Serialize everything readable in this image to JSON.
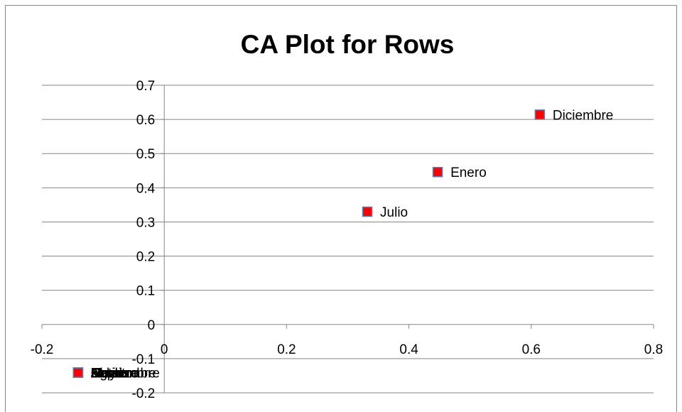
{
  "chart_data": {
    "type": "scatter",
    "title": "CA Plot for Rows",
    "xlabel": "",
    "ylabel": "",
    "xlim": [
      -0.2,
      0.8
    ],
    "ylim": [
      -0.2,
      0.7
    ],
    "x_ticks": [
      -0.2,
      0,
      0.2,
      0.4,
      0.6,
      0.8
    ],
    "y_ticks": [
      -0.2,
      -0.1,
      0,
      0.1,
      0.2,
      0.3,
      0.4,
      0.5,
      0.6,
      0.7
    ],
    "grid": "horizontal",
    "legend": "none",
    "marker_color": "#ff0000",
    "marker_edge_color": "#4f81bd",
    "points": [
      {
        "label": "Diciembre",
        "x": 0.614,
        "y": 0.614
      },
      {
        "label": "Enero",
        "x": 0.447,
        "y": 0.446
      },
      {
        "label": "Julio",
        "x": 0.332,
        "y": 0.33
      },
      {
        "label": "Febrero",
        "x": -0.141,
        "y": -0.141
      },
      {
        "label": "Marzo",
        "x": -0.141,
        "y": -0.141
      },
      {
        "label": "Abril",
        "x": -0.141,
        "y": -0.141
      },
      {
        "label": "Mayo",
        "x": -0.141,
        "y": -0.141
      },
      {
        "label": "Junio",
        "x": -0.141,
        "y": -0.141
      },
      {
        "label": "Agosto",
        "x": -0.141,
        "y": -0.141
      },
      {
        "label": "Septiembre",
        "x": -0.141,
        "y": -0.141
      },
      {
        "label": "Octubre",
        "x": -0.141,
        "y": -0.141
      },
      {
        "label": "Noviembre",
        "x": -0.141,
        "y": -0.141
      }
    ]
  }
}
